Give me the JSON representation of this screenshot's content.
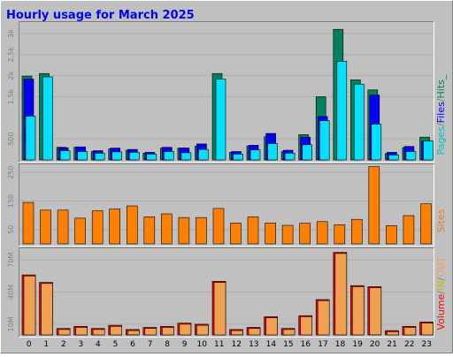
{
  "title": "Hourly usage for March 2025",
  "colors": {
    "background": "#c0c0c0",
    "frame_light": "#ffffff",
    "frame_dark": "#808080",
    "title": "#0000ff",
    "hits": "#00e0ff",
    "files": "#0000ff",
    "pages": "#00805c",
    "sites": "#ff8000",
    "volume": "#ff0000",
    "volume_in": "#f0a050",
    "label_pages": "#00c0c0",
    "label_sep": "#808080",
    "label_volume": "#ff0000",
    "label_in": "#c0c000",
    "label_out": "#f0a050",
    "label_sites": "#e08020"
  },
  "chart_data": [
    {
      "type": "bar",
      "panel": "hits-files-pages",
      "categories": [
        "0",
        "1",
        "2",
        "3",
        "4",
        "5",
        "6",
        "7",
        "8",
        "9",
        "10",
        "11",
        "12",
        "13",
        "14",
        "15",
        "16",
        "17",
        "18",
        "19",
        "20",
        "21",
        "22",
        "23"
      ],
      "ylim": [
        0,
        3250
      ],
      "yticks": [
        {
          "label": "500",
          "value": 500
        },
        {
          "label": "1.5k",
          "value": 1500
        },
        {
          "label": "2k",
          "value": 2000
        },
        {
          "label": "2.5k",
          "value": 2500
        },
        {
          "label": "3k",
          "value": 3000
        }
      ],
      "ylabel_parts": [
        "Pages",
        "/",
        "Files",
        "/",
        "Hits_"
      ],
      "series": [
        {
          "name": "Pages",
          "values": [
            1990,
            2050,
            300,
            300,
            200,
            260,
            230,
            160,
            280,
            280,
            330,
            2050,
            180,
            330,
            550,
            200,
            600,
            1500,
            3100,
            1900,
            1660,
            150,
            290,
            540
          ]
        },
        {
          "name": "Files",
          "values": [
            1920,
            0,
            290,
            310,
            220,
            280,
            250,
            180,
            300,
            280,
            380,
            0,
            200,
            350,
            630,
            230,
            540,
            1030,
            0,
            0,
            1540,
            180,
            320,
            450
          ]
        },
        {
          "name": "Hits",
          "values": [
            1040,
            1970,
            220,
            200,
            160,
            190,
            180,
            140,
            200,
            170,
            250,
            1920,
            140,
            240,
            390,
            160,
            360,
            930,
            2340,
            1800,
            850,
            120,
            200,
            450
          ]
        }
      ]
    },
    {
      "type": "bar",
      "panel": "sites",
      "categories": [
        "0",
        "1",
        "2",
        "3",
        "4",
        "5",
        "6",
        "7",
        "8",
        "9",
        "10",
        "11",
        "12",
        "13",
        "14",
        "15",
        "16",
        "17",
        "18",
        "19",
        "20",
        "21",
        "22",
        "23"
      ],
      "ylim": [
        0,
        275
      ],
      "yticks": [
        {
          "label": "50",
          "value": 50
        },
        {
          "label": "150",
          "value": 150
        },
        {
          "label": "250",
          "value": 250
        }
      ],
      "ylabel": "Sites",
      "series": [
        {
          "name": "Sites",
          "values": [
            145,
            118,
            118,
            90,
            116,
            122,
            133,
            95,
            105,
            92,
            92,
            124,
            73,
            95,
            73,
            65,
            72,
            78,
            67,
            86,
            270,
            64,
            99,
            140
          ]
        }
      ]
    },
    {
      "type": "bar",
      "panel": "volume",
      "categories": [
        "0",
        "1",
        "2",
        "3",
        "4",
        "5",
        "6",
        "7",
        "8",
        "9",
        "10",
        "11",
        "12",
        "13",
        "14",
        "15",
        "16",
        "17",
        "18",
        "19",
        "20",
        "21",
        "22",
        "23"
      ],
      "ylim": [
        0,
        80
      ],
      "yticks": [
        {
          "label": "10M",
          "value": 10
        },
        {
          "label": "40M",
          "value": 40
        },
        {
          "label": "70M",
          "value": 70
        }
      ],
      "ylabel_parts": [
        "Volume",
        "/",
        "IN",
        "/",
        "OUT"
      ],
      "series": [
        {
          "name": "Volume",
          "values": [
            56,
            49,
            6,
            8,
            6,
            9,
            5,
            7,
            8,
            11,
            10,
            50,
            5,
            7,
            17,
            6,
            18,
            33,
            77,
            46,
            45,
            4,
            8,
            12
          ]
        },
        {
          "name": "IN",
          "values": [
            55,
            48,
            5,
            7,
            5,
            8,
            4,
            6,
            7,
            10,
            9,
            49,
            4,
            6,
            16,
            5,
            17,
            32,
            76,
            45,
            44,
            3,
            7,
            11
          ]
        }
      ]
    }
  ],
  "xaxis_labels": [
    "0",
    "1",
    "2",
    "3",
    "4",
    "5",
    "6",
    "7",
    "8",
    "9",
    "10",
    "11",
    "12",
    "13",
    "14",
    "15",
    "16",
    "17",
    "18",
    "19",
    "20",
    "21",
    "22",
    "23"
  ]
}
